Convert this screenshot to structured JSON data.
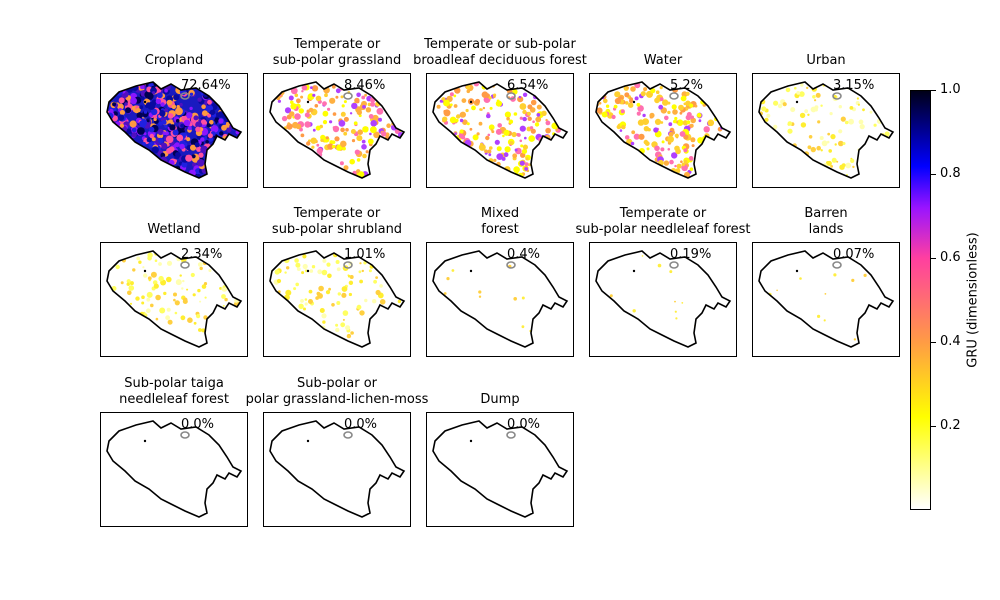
{
  "chart_data": {
    "type": "heatmap",
    "panels": [
      {
        "title": "Cropland",
        "percent_label": "72.64%",
        "percent": 72.64,
        "intensity": "high"
      },
      {
        "title": "Temperate or\nsub-polar grassland",
        "percent_label": "8.46%",
        "percent": 8.46,
        "intensity": "medium"
      },
      {
        "title": "Temperate or sub-polar\nbroadleaf deciduous forest",
        "percent_label": "6.54%",
        "percent": 6.54,
        "intensity": "medium"
      },
      {
        "title": "Water",
        "percent_label": "5.2%",
        "percent": 5.2,
        "intensity": "medium"
      },
      {
        "title": "Urban",
        "percent_label": "3.15%",
        "percent": 3.15,
        "intensity": "low"
      },
      {
        "title": "Wetland",
        "percent_label": "2.34%",
        "percent": 2.34,
        "intensity": "low"
      },
      {
        "title": "Temperate or\nsub-polar shrubland",
        "percent_label": "1.01%",
        "percent": 1.01,
        "intensity": "low"
      },
      {
        "title": "Mixed\nforest",
        "percent_label": "0.4%",
        "percent": 0.4,
        "intensity": "trace"
      },
      {
        "title": "Temperate or\nsub-polar needleleaf forest",
        "percent_label": "0.19%",
        "percent": 0.19,
        "intensity": "trace"
      },
      {
        "title": "Barren\nlands",
        "percent_label": "0.07%",
        "percent": 0.07,
        "intensity": "trace"
      },
      {
        "title": "Sub-polar taiga\nneedleleaf forest",
        "percent_label": "0.0%",
        "percent": 0.0,
        "intensity": "none"
      },
      {
        "title": "Sub-polar or\npolar grassland-lichen-moss",
        "percent_label": "0.0%",
        "percent": 0.0,
        "intensity": "none"
      },
      {
        "title": "Dump",
        "percent_label": "0.0%",
        "percent": 0.0,
        "intensity": "none"
      }
    ],
    "colorbar": {
      "label": "GRU (dimensionless)",
      "range": [
        0,
        1
      ],
      "ticks": [
        0.2,
        0.4,
        0.6,
        0.8
      ],
      "tick_labels": [
        "0.2",
        "0.4",
        "0.6",
        "0.8",
        "1.0"
      ],
      "tick_values": [
        0.2,
        0.4,
        0.6,
        0.8,
        1.0
      ],
      "colormap": [
        "#ffffff",
        "#ffff00",
        "#ff9b45",
        "#ff3fa0",
        "#9a14ff",
        "#0000ff",
        "#000018"
      ]
    }
  }
}
